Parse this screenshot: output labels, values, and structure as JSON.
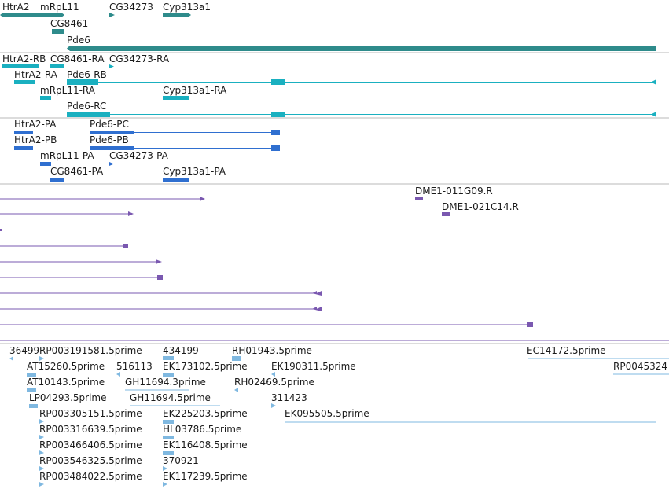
{
  "colors": {
    "gene": "#2e8b8b",
    "transcript_r": "#1ab0c0",
    "transcript_p": "#2f6fd0",
    "clone": "#7a58b0",
    "est": "#7fb8e0",
    "divider": "#b8b8b8"
  },
  "tracks": {
    "genes": {
      "labels": [
        "HtrA2",
        "mRpL11",
        "CG34273",
        "Cyp313a1",
        "CG8461",
        "Pde6"
      ]
    },
    "rna": {
      "labels": [
        "HtrA2-RB",
        "CG8461-RA",
        "CG34273-RA",
        "HtrA2-RA",
        "Pde6-RB",
        "mRpL11-RA",
        "Cyp313a1-RA",
        "Pde6-RC"
      ]
    },
    "protein": {
      "labels": [
        "HtrA2-PA",
        "Pde6-PC",
        "HtrA2-PB",
        "Pde6-PB",
        "mRpL11-PA",
        "CG34273-PA",
        "CG8461-PA",
        "Cyp313a1-PA"
      ]
    },
    "clones": {
      "labels": [
        "DME1-011G09.R",
        "DME1-021C14.R"
      ]
    },
    "ests": {
      "labels": [
        "36499",
        "RP003191581.5prime",
        "434199",
        "RH01943.5prime",
        "EC14172.5prime",
        "AT15260.5prime",
        "516113",
        "EK173102.5prime",
        "EK190311.5prime",
        "RP0045324",
        "AT10143.5prime",
        "GH11694.3prime",
        "RH02469.5prime",
        "LP04293.5prime",
        "GH11694.5prime",
        "311423",
        "RP003305151.5prime",
        "EK225203.5prime",
        "EK095505.5prime",
        "RP003316639.5prime",
        "HL03786.5prime",
        "RP003466406.5prime",
        "EK116408.5prime",
        "RP003546325.5prime",
        "370921",
        "RP003484022.5prime",
        "EK117239.5prime"
      ]
    }
  }
}
